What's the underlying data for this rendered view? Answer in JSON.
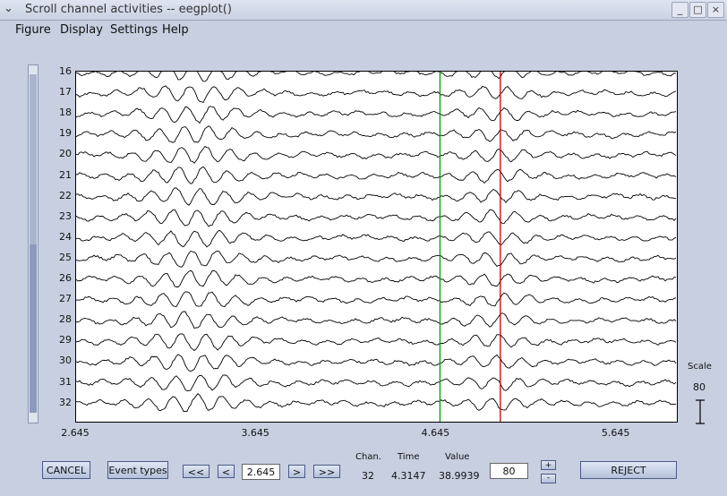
{
  "window": {
    "title": "Scroll channel activities -- eegplot()"
  },
  "menu": [
    "Figure",
    "Display",
    "Settings",
    "Help"
  ],
  "plot": {
    "channels": [
      "16",
      "17",
      "18",
      "19",
      "20",
      "21",
      "22",
      "23",
      "24",
      "25",
      "26",
      "27",
      "28",
      "29",
      "30",
      "31",
      "32"
    ],
    "x_ticks": [
      "2.645",
      "3.645",
      "4.645",
      "5.645"
    ],
    "markers": [
      {
        "x": 4.665,
        "color": "#00a000"
      },
      {
        "x": 5.0,
        "color": "#d00000"
      }
    ]
  },
  "scale": {
    "label": "Scale",
    "value": "80"
  },
  "controls": {
    "cancel": "CANCEL",
    "event_types": "Event types",
    "first": "<<",
    "prev": "<",
    "time_input": "2.645",
    "next": ">",
    "last": ">>",
    "chan_label": "Chan.",
    "time_label": "Time",
    "value_label": "Value",
    "chan_value": "32",
    "time_value": "4.3147",
    "value_value": "38.9939",
    "scale_input": "80",
    "plus": "+",
    "minus": "-",
    "reject": "REJECT"
  },
  "colors": {
    "trace": "#000000",
    "background": "#c7cfe0",
    "button": "#b4c0da"
  }
}
